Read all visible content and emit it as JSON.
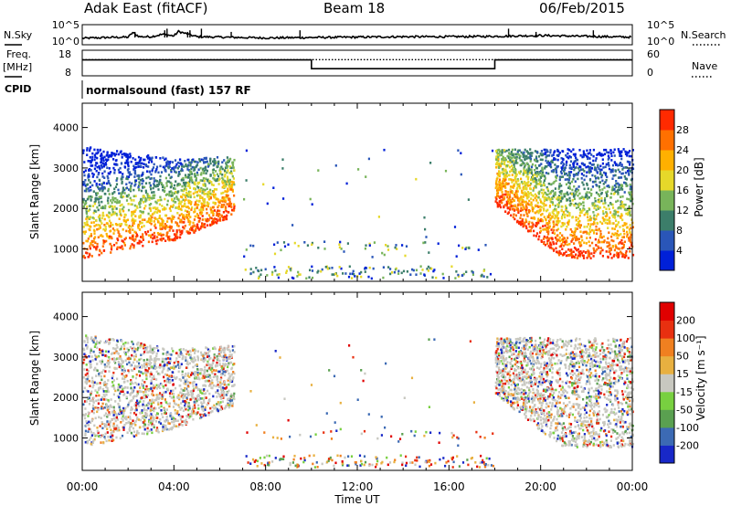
{
  "header": {
    "radar": "Adak East (fitACF)",
    "beam": "Beam 18",
    "date": "06/Feb/2015"
  },
  "left_labels": {
    "nsky": "N.Sky",
    "freq_line1": "Freq.",
    "freq_line2": "[MHz]",
    "cpid": "CPID"
  },
  "right_labels": {
    "nsearch": "N.Search",
    "nave": "Nave"
  },
  "cpid_text": "normalsound (fast) 157 RF",
  "power_colorbar": {
    "label": "Power [dB]",
    "ticks": [
      "4",
      "8",
      "12",
      "16",
      "20",
      "24",
      "28"
    ],
    "colors": [
      "#0020d8",
      "#2a56b8",
      "#3c7e6a",
      "#78b45a",
      "#e6d82a",
      "#ffb000",
      "#ff7000",
      "#ff2a00"
    ]
  },
  "velocity_colorbar": {
    "label": "Velocity [m s⁻¹]",
    "ticks": [
      "200",
      "100",
      "50",
      "15",
      "-15",
      "-50",
      "-100",
      "-200"
    ],
    "colors": [
      "#1828c8",
      "#3c6ab4",
      "#5aa050",
      "#78d040",
      "#c8c8c0",
      "#e8b040",
      "#f08020",
      "#e83010",
      "#e00000"
    ]
  },
  "chart_data": [
    {
      "type": "line",
      "name": "noise",
      "left_axis_label": "N.Sky",
      "right_axis_label": "N.Search",
      "yticks_left": [
        "10^5",
        "10^0"
      ],
      "yticks_right": [
        "10^5",
        "10^0"
      ],
      "ylim_log10": [
        0,
        5
      ],
      "x_hours": [
        0,
        1,
        2,
        2.2,
        2.5,
        3,
        3.5,
        4,
        4.2,
        5,
        6,
        7,
        8,
        10,
        12,
        14,
        16,
        18,
        20,
        22,
        24
      ],
      "nsky_log10": [
        1.6,
        1.8,
        1.9,
        3.0,
        2.0,
        2.0,
        2.6,
        2.2,
        3.3,
        2.0,
        1.9,
        1.8,
        1.7,
        1.8,
        1.9,
        2.0,
        2.0,
        2.1,
        2.3,
        2.1,
        1.9
      ]
    },
    {
      "type": "line",
      "name": "frequency",
      "left_axis_label": "Freq. [MHz]",
      "right_axis_label": "Nave",
      "yticks_left": [
        "18",
        "8"
      ],
      "yticks_right": [
        "60",
        "0"
      ],
      "ylim_left": [
        8,
        18
      ],
      "ylim_right": [
        0,
        60
      ],
      "freq_x_hours": [
        0,
        10,
        10,
        18,
        18,
        24
      ],
      "freq_mhz": [
        14.2,
        14.2,
        10.8,
        10.8,
        14.2,
        14.2
      ],
      "nave_x_hours": [
        0,
        24
      ],
      "nave": [
        38,
        38
      ]
    },
    {
      "type": "heatmap",
      "name": "power",
      "ylabel": "Slant Range [km]",
      "yticks": [
        "1000",
        "2000",
        "3000",
        "4000"
      ],
      "ylim": [
        200,
        4600
      ],
      "xlim_hours": [
        0,
        24
      ],
      "colorbar_label": "Power [dB]",
      "colorbar_range": [
        0,
        30
      ]
    },
    {
      "type": "heatmap",
      "name": "velocity",
      "ylabel": "Slant Range [km]",
      "yticks": [
        "1000",
        "2000",
        "3000",
        "4000"
      ],
      "ylim": [
        200,
        4600
      ],
      "xlabel": "Time UT",
      "xticks": [
        "00:00",
        "04:00",
        "08:00",
        "12:00",
        "16:00",
        "20:00",
        "00:00"
      ],
      "xtick_hours": [
        0,
        4,
        8,
        12,
        16,
        20,
        24
      ],
      "xlim_hours": [
        0,
        24
      ],
      "colorbar_label": "Velocity [m s⁻¹]",
      "colorbar_range": [
        -200,
        200
      ]
    }
  ]
}
